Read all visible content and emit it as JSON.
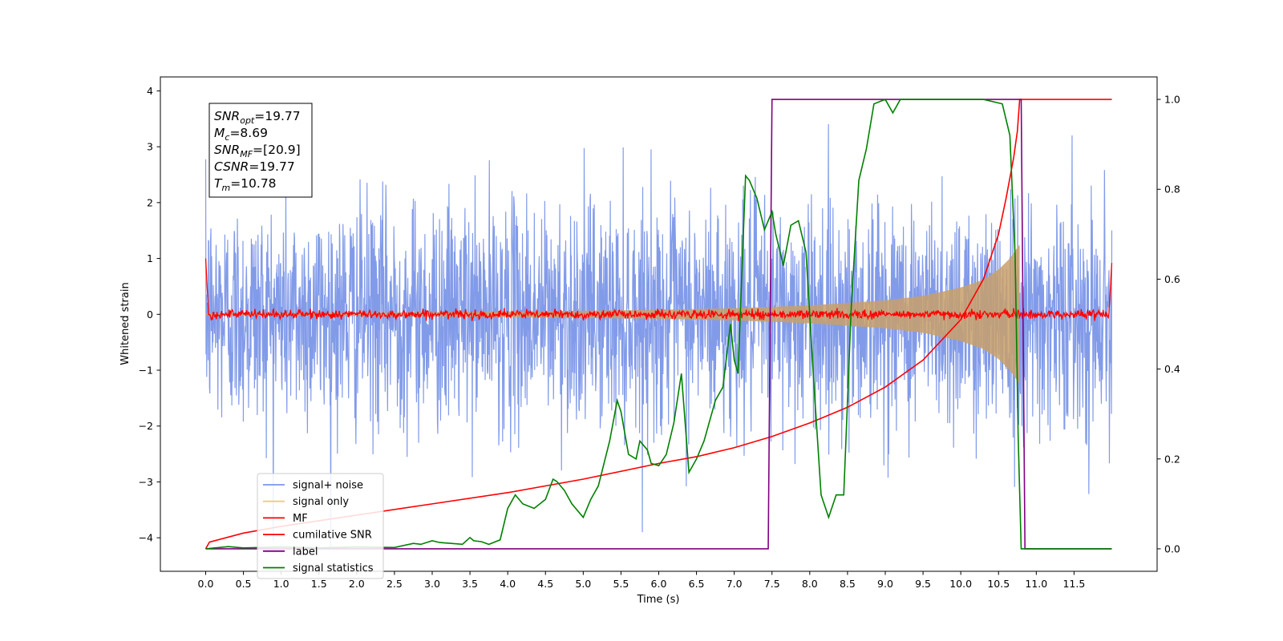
{
  "chart_data": {
    "type": "line",
    "title": "",
    "xlabel": "Time (s)",
    "ylabel": "Whitened strain",
    "ylabel_right": "",
    "xlim": [
      -0.6,
      12.6
    ],
    "ylim": [
      -4.6,
      4.25
    ],
    "ylim_right": [
      -0.05,
      1.05
    ],
    "x_ticks": [
      0.0,
      0.5,
      1.0,
      1.5,
      2.0,
      2.5,
      3.0,
      3.5,
      4.0,
      4.5,
      5.0,
      5.5,
      6.0,
      6.5,
      7.0,
      7.5,
      8.0,
      8.5,
      9.0,
      9.5,
      10.0,
      10.5,
      11.0,
      11.5
    ],
    "x_tick_labels": [
      "0.0",
      "0.5",
      "1.0",
      "1.5",
      "2.0",
      "2.5",
      "3.0",
      "3.5",
      "4.0",
      "4.5",
      "5.0",
      "5.5",
      "6.0",
      "6.5",
      "7.0",
      "7.5",
      "8.0",
      "8.5",
      "9.0",
      "9.5",
      "10.0",
      "10.5",
      "11.0",
      "11.5"
    ],
    "y_ticks": [
      4,
      3,
      2,
      1,
      0,
      -1,
      -2,
      -3,
      -4
    ],
    "y_tick_labels": [
      "4",
      "3",
      "2",
      "1",
      "0",
      "−1",
      "−2",
      "−3",
      "−4"
    ],
    "y_ticks_right": [
      1.0,
      0.8,
      0.6,
      0.4,
      0.2,
      0.0
    ],
    "y_tick_labels_right": [
      "1.0",
      "0.8",
      "0.6",
      "0.4",
      "0.2",
      "0.0"
    ],
    "legend_position": "lower-left",
    "grid": false,
    "annotation_box": {
      "lines": [
        {
          "sym": "SNR",
          "sub": "opt",
          "value": "=19.77"
        },
        {
          "sym": "M",
          "sub": "c",
          "value": "=8.69"
        },
        {
          "sym": "SNR",
          "sub": "MF",
          "value": "=[20.9]"
        },
        {
          "sym": "CSNR",
          "sub": "",
          "value": "=19.77"
        },
        {
          "sym": "T",
          "sub": "m",
          "value": "=10.78"
        }
      ]
    },
    "series": [
      {
        "name": "signal+ noise",
        "color": "#7b96e8",
        "axis": "left",
        "noise_std": 1.0,
        "x_range": [
          0.0,
          12.0
        ]
      },
      {
        "name": "signal only",
        "color": "#f5c970",
        "axis": "left",
        "envelope_x": [
          0.0,
          2.0,
          4.0,
          6.0,
          7.0,
          8.0,
          9.0,
          9.5,
          10.0,
          10.3,
          10.5,
          10.65,
          10.78
        ],
        "envelope_amp": [
          0.02,
          0.03,
          0.05,
          0.08,
          0.11,
          0.16,
          0.25,
          0.33,
          0.48,
          0.62,
          0.8,
          1.0,
          1.25
        ]
      },
      {
        "name": "MF",
        "color": "#ff0000",
        "axis": "left",
        "start_value": 1.0,
        "end_value": 0.92,
        "noise_level": 0.04
      },
      {
        "name": "cumilative SNR",
        "color": "#ff0000",
        "axis": "right",
        "x": [
          0.0,
          0.05,
          0.5,
          1.0,
          2.0,
          3.0,
          4.0,
          5.0,
          6.0,
          6.5,
          7.0,
          7.5,
          8.0,
          8.5,
          9.0,
          9.5,
          10.0,
          10.3,
          10.5,
          10.6,
          10.7,
          10.75,
          10.78,
          11.0,
          12.0
        ],
        "y": [
          0.0,
          0.015,
          0.035,
          0.05,
          0.075,
          0.1,
          0.125,
          0.155,
          0.19,
          0.205,
          0.225,
          0.25,
          0.28,
          0.315,
          0.36,
          0.42,
          0.51,
          0.6,
          0.7,
          0.78,
          0.87,
          0.93,
          1.0,
          1.0,
          1.0
        ]
      },
      {
        "name": "label",
        "color": "#800080",
        "axis": "right",
        "x": [
          0.0,
          7.45,
          7.5,
          10.8,
          10.85,
          12.0
        ],
        "y": [
          0.0,
          0.0,
          1.0,
          1.0,
          0.0,
          0.0
        ]
      },
      {
        "name": "signal statistics",
        "color": "#008000",
        "axis": "right",
        "x": [
          0.0,
          0.3,
          0.5,
          1.0,
          1.5,
          2.0,
          2.5,
          2.75,
          2.85,
          3.0,
          3.1,
          3.25,
          3.4,
          3.5,
          3.55,
          3.65,
          3.75,
          3.9,
          4.0,
          4.1,
          4.2,
          4.35,
          4.5,
          4.6,
          4.65,
          4.75,
          4.85,
          5.0,
          5.1,
          5.2,
          5.35,
          5.45,
          5.5,
          5.6,
          5.7,
          5.75,
          5.85,
          5.9,
          6.0,
          6.1,
          6.2,
          6.3,
          6.4,
          6.5,
          6.6,
          6.75,
          6.85,
          6.95,
          7.0,
          7.05,
          7.1,
          7.15,
          7.2,
          7.3,
          7.4,
          7.5,
          7.55,
          7.65,
          7.75,
          7.85,
          7.95,
          8.05,
          8.15,
          8.25,
          8.35,
          8.45,
          8.55,
          8.65,
          8.75,
          8.85,
          9.0,
          9.1,
          9.2,
          9.3,
          9.4,
          9.5,
          9.7,
          10.0,
          10.3,
          10.55,
          10.65,
          10.72,
          10.76,
          10.8,
          10.85,
          12.0
        ],
        "y": [
          0.0,
          0.005,
          0.002,
          0.004,
          0.002,
          0.004,
          0.003,
          0.012,
          0.01,
          0.018,
          0.014,
          0.012,
          0.01,
          0.025,
          0.018,
          0.016,
          0.01,
          0.02,
          0.09,
          0.12,
          0.1,
          0.09,
          0.11,
          0.155,
          0.15,
          0.13,
          0.1,
          0.07,
          0.11,
          0.14,
          0.24,
          0.33,
          0.305,
          0.21,
          0.2,
          0.24,
          0.22,
          0.19,
          0.185,
          0.21,
          0.28,
          0.39,
          0.17,
          0.2,
          0.24,
          0.33,
          0.36,
          0.5,
          0.42,
          0.39,
          0.61,
          0.83,
          0.82,
          0.78,
          0.71,
          0.75,
          0.7,
          0.63,
          0.72,
          0.73,
          0.66,
          0.38,
          0.12,
          0.07,
          0.12,
          0.12,
          0.54,
          0.82,
          0.89,
          0.99,
          1.0,
          0.97,
          1.0,
          1.0,
          1.0,
          1.0,
          1.0,
          1.0,
          1.0,
          0.99,
          0.92,
          0.65,
          0.25,
          0.0,
          0.0,
          0.0
        ]
      }
    ]
  }
}
